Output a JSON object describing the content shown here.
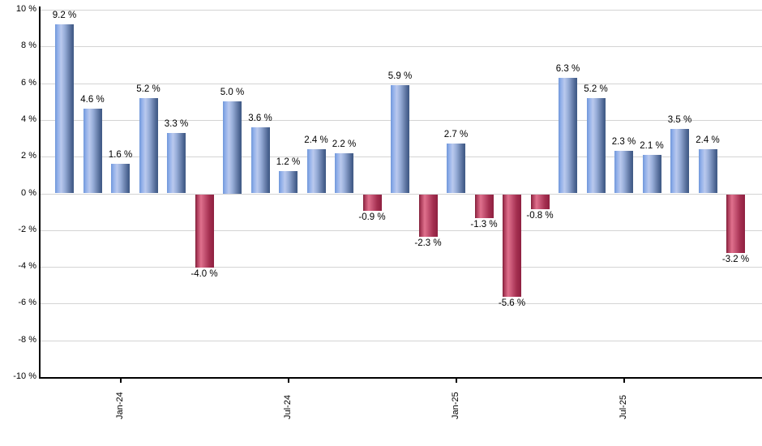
{
  "chart": {
    "background_color": "#ffffff",
    "grid_color": "#d4d4d4",
    "axis_color": "#000000",
    "positive_bar_color": "#7aa3e4",
    "negative_bar_color": "#c43b60"
  },
  "chart_data": {
    "type": "bar",
    "title": "",
    "xlabel": "",
    "ylabel": "",
    "ylim": [
      -10,
      10
    ],
    "grid": "horizontal",
    "legend": null,
    "y_ticks": [
      10,
      8,
      6,
      4,
      2,
      0,
      -2,
      -4,
      -6,
      -8,
      -10
    ],
    "y_tick_suffix": " %",
    "values": [
      9.2,
      4.6,
      1.6,
      5.2,
      3.3,
      -4.0,
      5.0,
      3.6,
      1.2,
      2.4,
      2.2,
      -0.9,
      5.9,
      -2.3,
      2.7,
      -1.3,
      -5.6,
      -0.8,
      6.3,
      5.2,
      2.3,
      2.1,
      3.5,
      2.4,
      -3.2
    ],
    "bar_label_suffix": " %",
    "x_ticks": [
      {
        "label": "Jan-24",
        "bar_index": 2
      },
      {
        "label": "Jul-24",
        "bar_index": 8
      },
      {
        "label": "Jan-25",
        "bar_index": 14
      },
      {
        "label": "Jul-25",
        "bar_index": 20
      }
    ]
  }
}
